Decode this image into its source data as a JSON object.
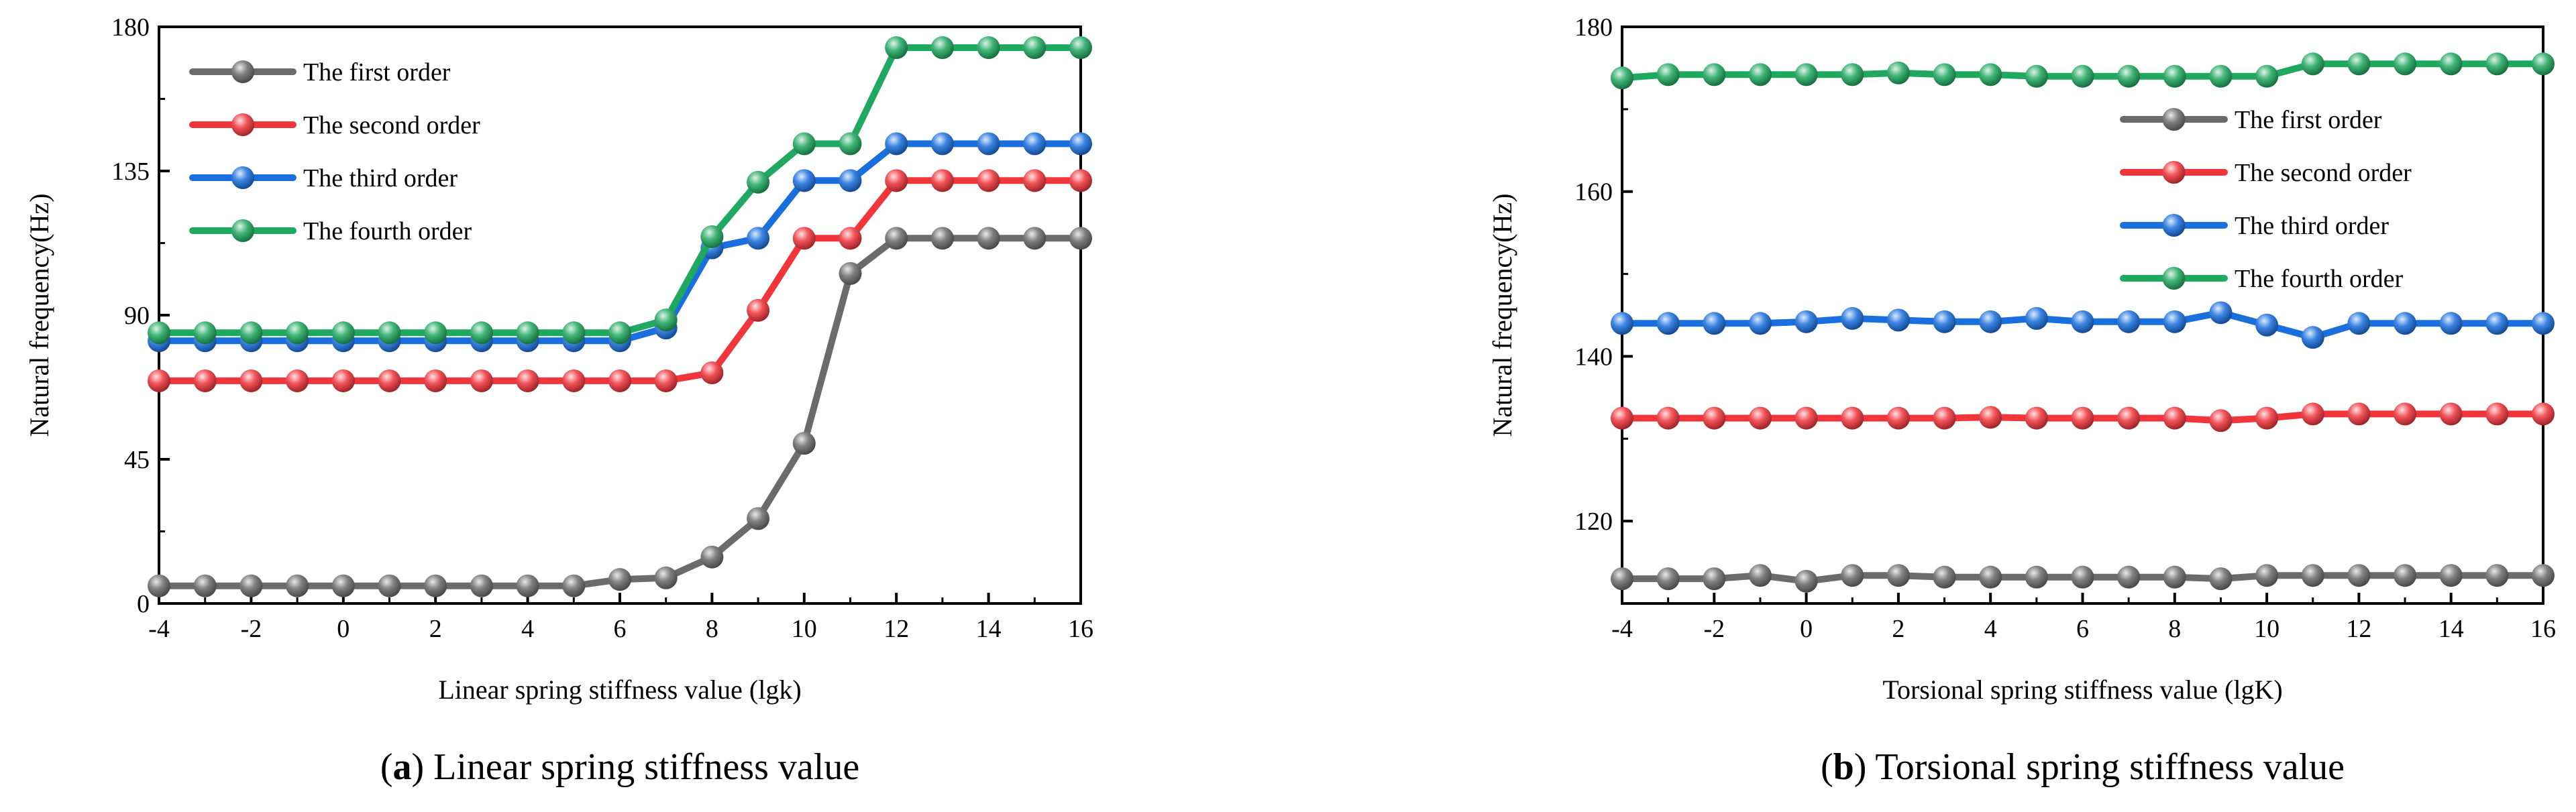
{
  "colors": {
    "first": "#6b6b6b",
    "second": "#f0353b",
    "third": "#1a6fde",
    "fourth": "#1fa85f"
  },
  "chart_data": [
    {
      "type": "line",
      "id": "a",
      "caption_letter": "a",
      "caption_text": " Linear spring stiffness value",
      "xlabel": "Linear spring stiffness value (lgk)",
      "ylabel": "Natural frequency(Hz)",
      "xlim": [
        -4,
        16
      ],
      "ylim": [
        0,
        180
      ],
      "xticks": [
        "-4",
        "-2",
        "0",
        "2",
        "4",
        "6",
        "8",
        "10",
        "12",
        "14",
        "16"
      ],
      "yticks": [
        "0",
        "45",
        "90",
        "135",
        "180"
      ],
      "x": [
        -4,
        -3,
        -2,
        -1,
        0,
        1,
        2,
        3,
        4,
        5,
        6,
        7,
        8,
        9,
        10,
        11,
        12,
        13,
        14,
        15,
        16
      ],
      "legend_position": "top-left",
      "series": [
        {
          "key": "first",
          "name": "The first order",
          "values": [
            5.5,
            5.5,
            5.5,
            5.5,
            5.5,
            5.5,
            5.5,
            5.5,
            5.5,
            5.5,
            7.5,
            8,
            14.5,
            26.5,
            50,
            103,
            114,
            114,
            114,
            114,
            114
          ]
        },
        {
          "key": "second",
          "name": "The second order",
          "values": [
            69.5,
            69.5,
            69.5,
            69.5,
            69.5,
            69.5,
            69.5,
            69.5,
            69.5,
            69.5,
            69.5,
            69.5,
            72,
            91.5,
            114,
            114,
            132,
            132,
            132,
            132,
            132
          ]
        },
        {
          "key": "third",
          "name": "The third order",
          "values": [
            82,
            82,
            82,
            82,
            82,
            82,
            82,
            82,
            82,
            82,
            82,
            86,
            111,
            114,
            132,
            132,
            143.5,
            143.5,
            143.5,
            143.5,
            143.5
          ]
        },
        {
          "key": "fourth",
          "name": "The fourth order",
          "values": [
            84.5,
            84.5,
            84.5,
            84.5,
            84.5,
            84.5,
            84.5,
            84.5,
            84.5,
            84.5,
            84.5,
            88.5,
            114.5,
            131.5,
            143.5,
            143.5,
            173.5,
            173.5,
            173.5,
            173.5,
            173.5
          ]
        }
      ]
    },
    {
      "type": "line",
      "id": "b",
      "caption_letter": "b",
      "caption_text": " Torsional spring stiffness value",
      "xlabel": "Torsional spring stiffness value (lgK)",
      "ylabel": "Natural frequency(Hz)",
      "xlim": [
        -4,
        16
      ],
      "ylim": [
        110,
        180
      ],
      "xticks": [
        "-4",
        "-2",
        "0",
        "2",
        "4",
        "6",
        "8",
        "10",
        "12",
        "14",
        "16"
      ],
      "yticks": [
        "120",
        "140",
        "160",
        "180"
      ],
      "x": [
        -4,
        -3,
        -2,
        -1,
        0,
        1,
        2,
        3,
        4,
        5,
        6,
        7,
        8,
        9,
        10,
        11,
        12,
        13,
        14,
        15,
        16
      ],
      "legend_position": "center-right",
      "series": [
        {
          "key": "first",
          "name": "The first order",
          "values": [
            113,
            113,
            113,
            113.4,
            112.7,
            113.4,
            113.4,
            113.2,
            113.2,
            113.2,
            113.2,
            113.2,
            113.2,
            113,
            113.4,
            113.4,
            113.4,
            113.4,
            113.4,
            113.4,
            113.4
          ]
        },
        {
          "key": "second",
          "name": "The second order",
          "values": [
            132.5,
            132.5,
            132.5,
            132.5,
            132.5,
            132.5,
            132.5,
            132.5,
            132.6,
            132.5,
            132.5,
            132.5,
            132.5,
            132.2,
            132.5,
            133,
            133,
            133,
            133,
            133,
            133
          ]
        },
        {
          "key": "third",
          "name": "The third order",
          "values": [
            144,
            144,
            144,
            144,
            144.2,
            144.6,
            144.4,
            144.2,
            144.2,
            144.6,
            144.2,
            144.2,
            144.2,
            145.3,
            143.8,
            142.3,
            144,
            144,
            144,
            144,
            144
          ]
        },
        {
          "key": "fourth",
          "name": "The fourth order",
          "values": [
            173.8,
            174.2,
            174.2,
            174.2,
            174.2,
            174.2,
            174.4,
            174.2,
            174.2,
            174,
            174,
            174,
            174,
            174,
            174,
            175.5,
            175.5,
            175.5,
            175.5,
            175.5,
            175.5
          ]
        }
      ]
    }
  ]
}
